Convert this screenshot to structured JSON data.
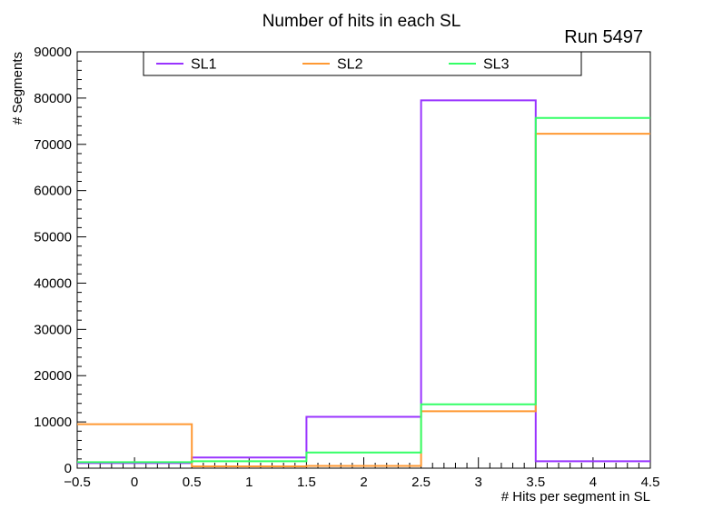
{
  "chart_data": {
    "type": "step-histogram",
    "title": "Number of hits in each SL",
    "annotation": "Run 5497",
    "xlabel": "# Hits per segment in SL",
    "ylabel": "# Segments",
    "xlim": [
      -0.5,
      4.5
    ],
    "ylim": [
      0,
      90000
    ],
    "grid": false,
    "background": "#ffffff",
    "axis_color": "#000000",
    "bin_edges": [
      -0.5,
      0.5,
      1.5,
      2.5,
      3.5,
      4.5
    ],
    "bin_centers": [
      0,
      1,
      2,
      3,
      4
    ],
    "x_major_ticks": [
      -0.5,
      0,
      0.5,
      1,
      1.5,
      2,
      2.5,
      3,
      3.5,
      4,
      4.5
    ],
    "x_tick_labels": [
      "−0.5",
      "0",
      "0.5",
      "1",
      "1.5",
      "2",
      "2.5",
      "3",
      "3.5",
      "4",
      "4.5"
    ],
    "x_minor_ticks_per_division": 4,
    "y_major_ticks": [
      0,
      10000,
      20000,
      30000,
      40000,
      50000,
      60000,
      70000,
      80000,
      90000
    ],
    "y_tick_labels": [
      "0",
      "10000",
      "20000",
      "30000",
      "40000",
      "50000",
      "60000",
      "70000",
      "80000",
      "90000"
    ],
    "y_minor_step": 2000,
    "series": [
      {
        "name": "SL1",
        "color": "#9933ff",
        "values": [
          1100,
          2300,
          11100,
          79500,
          1500
        ]
      },
      {
        "name": "SL2",
        "color": "#ff9933",
        "values": [
          9500,
          400,
          500,
          12300,
          72300
        ]
      },
      {
        "name": "SL3",
        "color": "#33ff66",
        "values": [
          1300,
          1500,
          3400,
          13800,
          75700
        ]
      }
    ],
    "legend": {
      "position": "top",
      "entries": [
        "SL1",
        "SL2",
        "SL3"
      ]
    }
  }
}
